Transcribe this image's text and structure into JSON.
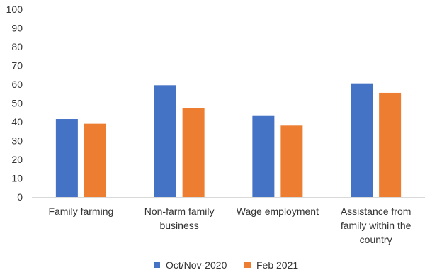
{
  "chart_data": {
    "type": "bar",
    "categories": [
      [
        "Family farming"
      ],
      [
        "Non-farm family",
        "business"
      ],
      [
        "Wage employment"
      ],
      [
        "Assistance from",
        "family within the",
        "country"
      ]
    ],
    "series": [
      {
        "name": "Oct/Nov-2020",
        "color": "#4472C4",
        "values": [
          41.5,
          59.5,
          43.5,
          60.5
        ]
      },
      {
        "name": "Feb 2021",
        "color": "#ED7D31",
        "values": [
          39,
          47.5,
          38,
          55.5
        ]
      }
    ],
    "ylim": [
      0,
      100
    ],
    "yticks": [
      "0",
      "10",
      "20",
      "30",
      "40",
      "50",
      "60",
      "70",
      "80",
      "90",
      "100"
    ],
    "grid": false,
    "legend_position": "bottom"
  }
}
